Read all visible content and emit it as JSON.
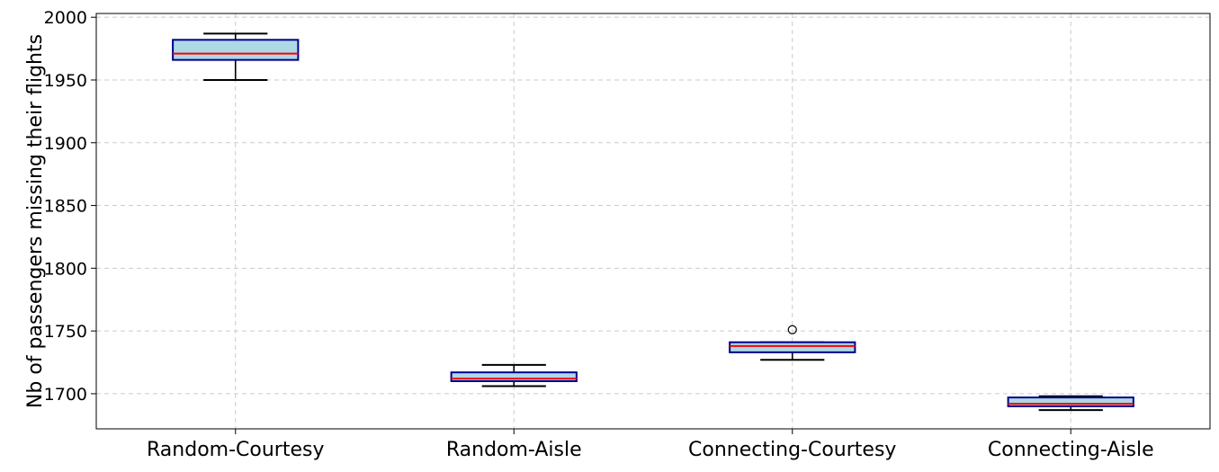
{
  "chart_data": {
    "type": "box",
    "title": "",
    "xlabel": "",
    "ylabel": "Nb of passengers missing their flights",
    "ylim": [
      1672,
      2003
    ],
    "yticks": [
      1700,
      1750,
      1800,
      1850,
      1900,
      1950,
      2000
    ],
    "grid": true,
    "categories": [
      "Random-Courtesy",
      "Random-Aisle",
      "Connecting-Courtesy",
      "Connecting-Aisle"
    ],
    "boxes": [
      {
        "category": "Random-Courtesy",
        "whisker_low": 1950,
        "q1": 1966,
        "median": 1971,
        "q3": 1982,
        "whisker_high": 1987,
        "outliers": []
      },
      {
        "category": "Random-Aisle",
        "whisker_low": 1706,
        "q1": 1710,
        "median": 1712,
        "q3": 1717,
        "whisker_high": 1723,
        "outliers": []
      },
      {
        "category": "Connecting-Courtesy",
        "whisker_low": 1727,
        "q1": 1733,
        "median": 1738,
        "q3": 1741,
        "whisker_high": 1741,
        "outliers": [
          1751
        ]
      },
      {
        "category": "Connecting-Aisle",
        "whisker_low": 1687,
        "q1": 1690,
        "median": 1692,
        "q3": 1697,
        "whisker_high": 1698,
        "outliers": []
      }
    ],
    "colors": {
      "box_fill": "#add8e6",
      "box_edge": "#00008b",
      "median": "#ff0000",
      "whisker": "#000000",
      "grid": "#cccccc",
      "frame": "#000000"
    }
  }
}
